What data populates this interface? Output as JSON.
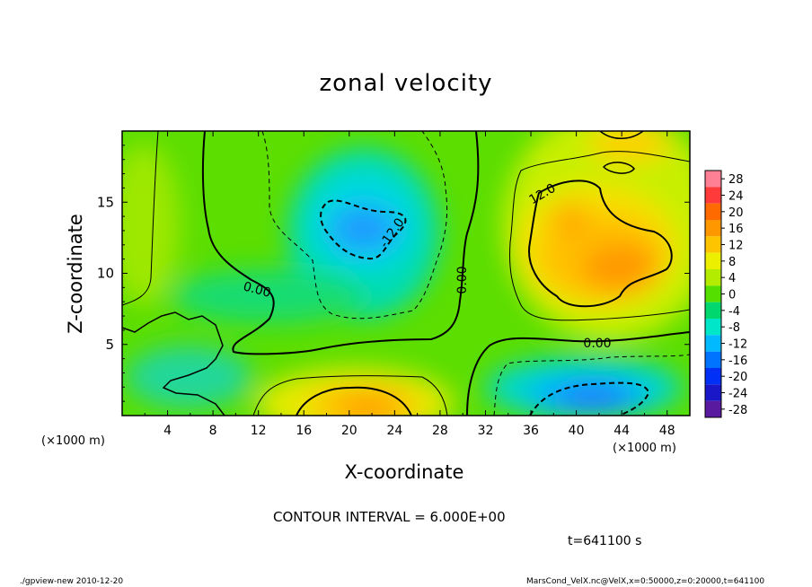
{
  "chart_data": {
    "type": "heatmap",
    "title": "zonal velocity",
    "xlabel": "X-coordinate",
    "ylabel": "Z-coordinate",
    "x_unit": "(×1000 m)",
    "y_unit": "(×1000 m)",
    "xlim": [
      0,
      50
    ],
    "ylim": [
      0,
      20
    ],
    "x_ticks": [
      4,
      8,
      12,
      16,
      20,
      24,
      28,
      32,
      36,
      40,
      44,
      48
    ],
    "y_ticks": [
      5,
      10,
      15
    ],
    "contour_labels": [
      "12.0",
      "-12.0",
      "0.00",
      "0.00",
      "0.00"
    ],
    "colorbar": {
      "levels": [
        28,
        24,
        20,
        16,
        12,
        8,
        4,
        0,
        -4,
        -8,
        -12,
        -16,
        -20,
        -24,
        -28
      ],
      "colors": [
        "#ff7f95",
        "#ff3a3a",
        "#ff6a00",
        "#ff9800",
        "#ffc400",
        "#ecf000",
        "#b4ec00",
        "#54df00",
        "#00d76e",
        "#00e6c8",
        "#00b9ff",
        "#0073ff",
        "#0030f5",
        "#1a17c8",
        "#5a1aa0"
      ]
    },
    "contour_interval": "CONTOUR INTERVAL = 6.000E+00",
    "time": "t=641100 s"
  },
  "footer": {
    "left": "./gpview-new  2010-12-20",
    "right": "MarsCond_VelX.nc@VelX,x=0:50000,z=0:20000,t=641100"
  }
}
